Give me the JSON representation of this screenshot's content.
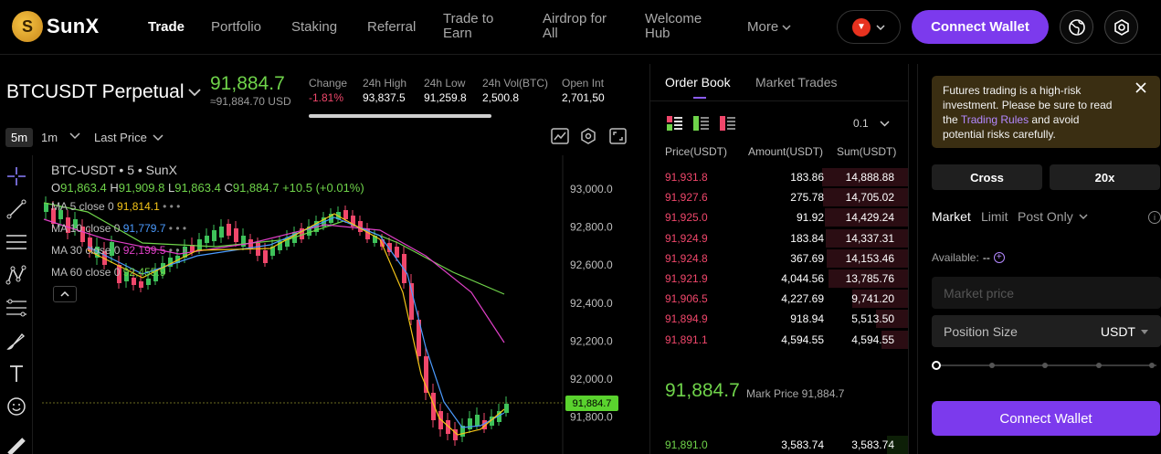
{
  "brand": {
    "name": "SunX",
    "mark": "S"
  },
  "nav": {
    "items": [
      {
        "label": "Trade"
      },
      {
        "label": "Portfolio"
      },
      {
        "label": "Staking"
      },
      {
        "label": "Referral"
      },
      {
        "label": "Trade to Earn"
      },
      {
        "label": "Airdrop for All"
      },
      {
        "label": "Welcome Hub"
      },
      {
        "label": "More"
      }
    ],
    "connect_label": "Connect Wallet",
    "chain_icon": "tron-icon"
  },
  "ticker": {
    "symbol": "BTCUSDT Perpetual",
    "last_price": "91,884.7",
    "last_usd": "≈91,884.70 USD",
    "stats": [
      {
        "k": "Change",
        "v": "-1.81%"
      },
      {
        "k": "24h High",
        "v": "93,837.5"
      },
      {
        "k": "24h Low",
        "v": "91,259.8"
      },
      {
        "k": "24h Vol(BTC)",
        "v": "2,500.8"
      },
      {
        "k": "Open Int",
        "v": "2,701,50"
      }
    ]
  },
  "chart_toolbar": {
    "intervals": [
      "5m",
      "1m"
    ],
    "price_type": "Last Price"
  },
  "chart": {
    "header": "BTC-USDT • 5 • SunX",
    "ohlc": {
      "o": "91,863.4",
      "h": "91,909.8",
      "l": "91,863.4",
      "c": "91,884.7",
      "chg": "+10.5 (+0.01%)"
    },
    "mas": [
      {
        "label": "MA 5 close 0",
        "value": "91,814.1",
        "color": "#f5c518"
      },
      {
        "label": "MA 10 close 0",
        "value": "91,779.7",
        "color": "#4b9bff"
      },
      {
        "label": "MA 30 close 0",
        "value": "92,199.5",
        "color": "#e040c8"
      },
      {
        "label": "MA 60 close 0",
        "value": "92,455.9",
        "color": "#6fd34a"
      }
    ],
    "axis_labels": [
      "93,000.0",
      "92,800.0",
      "92,600.0",
      "92,400.0",
      "92,200.0",
      "92,000.0",
      "91,800.0"
    ],
    "current_price_tag": "91,884.7"
  },
  "orderbook": {
    "tabs": [
      "Order Book",
      "Market Trades"
    ],
    "group": "0.1",
    "headers": {
      "price": "Price(USDT)",
      "amount": "Amount(USDT)",
      "sum": "Sum(USDT)"
    },
    "asks": [
      {
        "p": "91,931.8",
        "a": "183.86",
        "s": "14,888.88",
        "depth": 1.0
      },
      {
        "p": "91,927.6",
        "a": "275.78",
        "s": "14,705.02",
        "depth": 0.99
      },
      {
        "p": "91,925.0",
        "a": "91.92",
        "s": "14,429.24",
        "depth": 0.97
      },
      {
        "p": "91,924.9",
        "a": "183.84",
        "s": "14,337.31",
        "depth": 0.96
      },
      {
        "p": "91,924.8",
        "a": "367.69",
        "s": "14,153.46",
        "depth": 0.95
      },
      {
        "p": "91,921.9",
        "a": "4,044.56",
        "s": "13,785.76",
        "depth": 0.93
      },
      {
        "p": "91,906.5",
        "a": "4,227.69",
        "s": "9,741.20",
        "depth": 0.65
      },
      {
        "p": "91,894.9",
        "a": "918.94",
        "s": "5,513.50",
        "depth": 0.37
      },
      {
        "p": "91,891.1",
        "a": "4,594.55",
        "s": "4,594.55",
        "depth": 0.31
      }
    ],
    "mid_price": "91,884.7",
    "mark_price": "Mark Price 91,884.7",
    "bids": [
      {
        "p": "91,891.0",
        "a": "3,583.74",
        "s": "3,583.74",
        "depth": 0.24
      }
    ]
  },
  "trade_panel": {
    "warning_pre": "Futures trading is a high-risk investment. Please be sure to read the ",
    "warning_link": "Trading Rules",
    "warning_post": " and avoid potential risks carefully.",
    "margin_mode": "Cross",
    "leverage": "20x",
    "order_types": [
      "Market",
      "Limit",
      "Post Only"
    ],
    "available_label": "Available:",
    "available_value": "--",
    "market_price_placeholder": "Market price",
    "position_size_label": "Position Size",
    "position_unit": "USDT",
    "slider_value": 0,
    "connect_label": "Connect Wallet"
  }
}
